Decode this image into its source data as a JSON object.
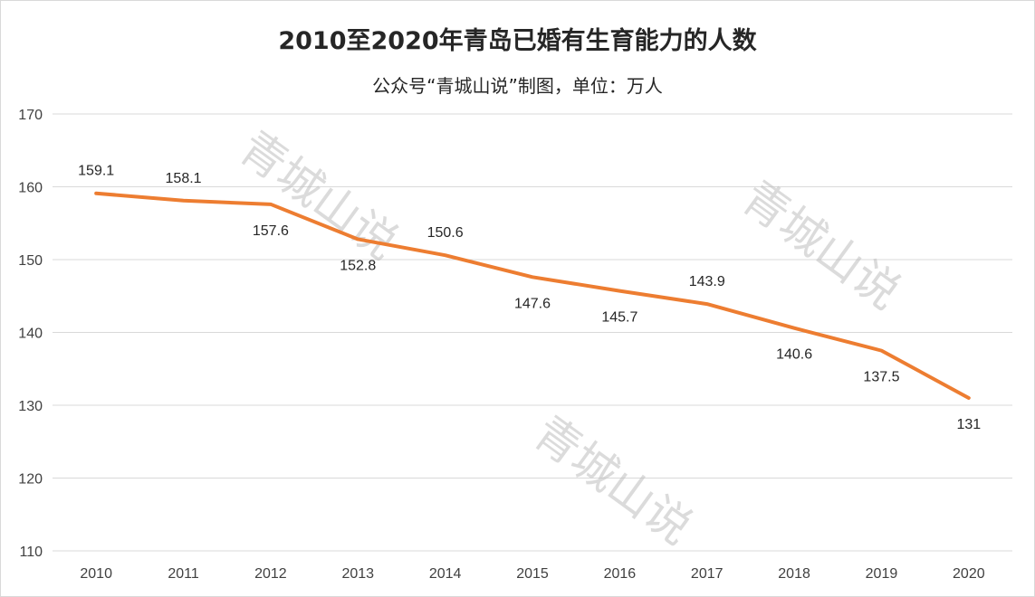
{
  "chart_data": {
    "type": "line",
    "title": "2010至2020年青岛已婚有生育能力的人数",
    "subtitle": "公众号“青城山说”制图，单位：万人",
    "categories": [
      "2010",
      "2011",
      "2012",
      "2013",
      "2014",
      "2015",
      "2016",
      "2017",
      "2018",
      "2019",
      "2020"
    ],
    "series": [
      {
        "values": [
          159.1,
          158.1,
          157.6,
          152.8,
          150.6,
          147.6,
          145.7,
          143.9,
          140.6,
          137.5,
          131
        ]
      }
    ],
    "data_labels": [
      "159.1",
      "158.1",
      "157.6",
      "152.8",
      "150.6",
      "147.6",
      "145.7",
      "143.9",
      "140.6",
      "137.5",
      "131"
    ],
    "label_side": [
      "above",
      "above",
      "below",
      "below",
      "above",
      "below",
      "below",
      "above",
      "below",
      "below",
      "below"
    ],
    "yticks": [
      110,
      120,
      130,
      140,
      150,
      160,
      170
    ],
    "ylim": [
      110,
      170
    ],
    "grid": true,
    "legend": "none",
    "line_color": "#ed7d31",
    "watermark": "青城山说"
  }
}
